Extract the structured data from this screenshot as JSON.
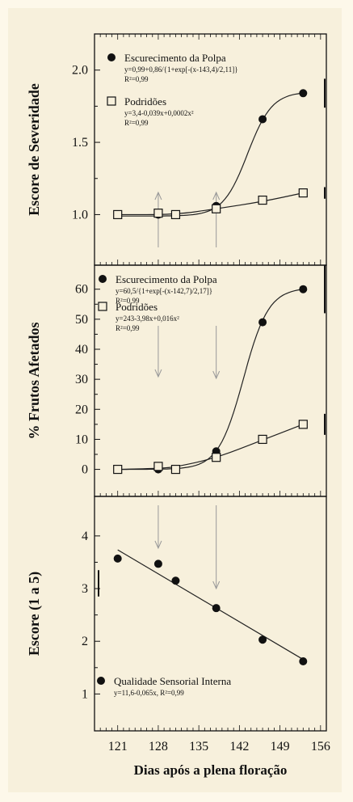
{
  "xaxis": {
    "label": "Dias após a plena floração",
    "ticks": [
      121,
      128,
      135,
      142,
      149,
      156
    ],
    "range": [
      117,
      157
    ]
  },
  "chart_data": [
    {
      "type": "scatter",
      "ylabel": "Escore de Severidade",
      "ylim": [
        0.65,
        2.25
      ],
      "yticks": [
        "1.0",
        "1.5",
        "2.0"
      ],
      "ytick_values": [
        1.0,
        1.5,
        2.0
      ],
      "arrows_x": [
        128,
        138
      ],
      "series": [
        {
          "name": "Escurecimento da Polpa",
          "equation": "y=0,99+0,86/{1+exp[-(x-143,4)/2,11]}",
          "r2": "R²=0,99",
          "marker": "filled-circle",
          "x": [
            121,
            128,
            131,
            138,
            146,
            153
          ],
          "y": [
            1.0,
            1.0,
            1.0,
            1.06,
            1.66,
            1.84
          ],
          "fit": {
            "kind": "logistic",
            "a": 0.99,
            "b": 0.86,
            "c": 143.4,
            "d": 2.11
          },
          "error_bar": 0.2
        },
        {
          "name": "Podridões",
          "equation": "y=3,4-0,039x+0,0002x²",
          "r2": "R²=0,99",
          "marker": "open-square",
          "x": [
            121,
            128,
            131,
            138,
            146,
            153
          ],
          "y": [
            1.0,
            1.01,
            1.0,
            1.04,
            1.1,
            1.15
          ],
          "fit": {
            "kind": "quadratic",
            "c0": 1.0,
            "c1": 0.0,
            "c2": 0.0,
            "points": [
              [
                121,
                1.0
              ],
              [
                131,
                1.0
              ],
              [
                138,
                1.04
              ],
              [
                146,
                1.09
              ],
              [
                153,
                1.15
              ]
            ]
          },
          "error_bar": 0.08
        }
      ]
    },
    {
      "type": "scatter",
      "ylabel": "% Frutos Afetados",
      "ylim": [
        -9,
        68
      ],
      "yticks": [
        "0",
        "10",
        "20",
        "30",
        "40",
        "50",
        "60"
      ],
      "ytick_values": [
        0,
        10,
        20,
        30,
        40,
        50,
        60
      ],
      "arrows_x": [
        128,
        138
      ],
      "series": [
        {
          "name": "Escurecimento da Polpa",
          "equation": "y=60,5/{1+exp[-(x-142,7)/2,17]}",
          "r2": "R²=0,99",
          "marker": "filled-circle",
          "x": [
            121,
            128,
            131,
            138,
            146,
            153
          ],
          "y": [
            0,
            0,
            0,
            6,
            49,
            60
          ],
          "fit": {
            "kind": "logistic",
            "a": 0,
            "b": 60.5,
            "c": 142.7,
            "d": 2.17
          },
          "error_bar": 16
        },
        {
          "name": "Podridões",
          "equation": "y=243-3,98x+0,016x²",
          "r2": "R²=0,99",
          "marker": "open-square",
          "x": [
            121,
            128,
            131,
            138,
            146,
            153
          ],
          "y": [
            0,
            1,
            0,
            4,
            10,
            15
          ],
          "fit": {
            "kind": "quadratic",
            "points": [
              [
                121,
                0
              ],
              [
                128,
                0.3
              ],
              [
                131,
                0.8
              ],
              [
                138,
                3.8
              ],
              [
                146,
                9.8
              ],
              [
                153,
                15
              ]
            ]
          },
          "error_bar": 7
        }
      ]
    },
    {
      "type": "scatter",
      "ylabel": "Escore (1 a 5)",
      "ylim": [
        0.3,
        4.75
      ],
      "yticks": [
        "1",
        "2",
        "3",
        "4"
      ],
      "ytick_values": [
        1,
        2,
        3,
        4
      ],
      "arrows_x": [
        128,
        138
      ],
      "series": [
        {
          "name": "Qualidade Sensorial Interna",
          "equation": "y=11,6-0,065x,  R²=0,99",
          "r2": "",
          "marker": "filled-circle",
          "x": [
            121,
            128,
            131,
            138,
            146,
            153
          ],
          "y": [
            3.57,
            3.47,
            3.15,
            2.63,
            2.03,
            1.62
          ],
          "fit": {
            "kind": "linear",
            "m": -0.065,
            "b": 11.6
          },
          "error_bar": 0.5
        }
      ]
    }
  ]
}
